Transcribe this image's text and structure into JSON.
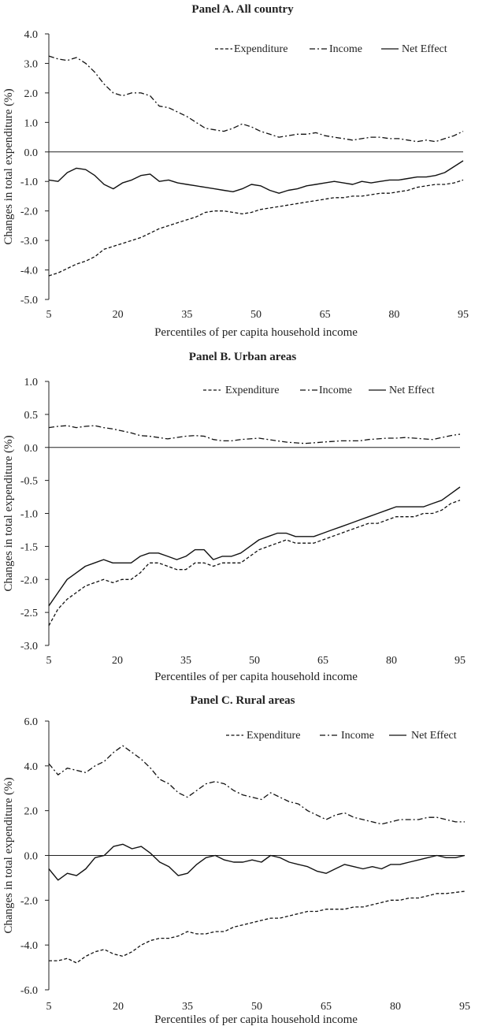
{
  "chart_data": [
    {
      "type": "line",
      "title": "Panel A. All country",
      "xlabel": "Percentiles of per capita household income",
      "ylabel": "Changes in total expenditure (%)",
      "xlim": [
        5,
        95
      ],
      "ylim": [
        -5.0,
        4.0
      ],
      "xticks": [
        5,
        20,
        35,
        50,
        65,
        80,
        95
      ],
      "xtick_labels": [
        "5",
        "20",
        "35",
        "50",
        "65",
        "80",
        "95"
      ],
      "yticks": [
        -5,
        -4,
        -3,
        -2,
        -1,
        0,
        1,
        2,
        3,
        4
      ],
      "ytick_labels": [
        "-5.0",
        "-4.0",
        "-3.0",
        "-2.0",
        "-1.0",
        "0.0",
        "1.0",
        "2.0",
        "3.0",
        "4.0"
      ],
      "legend_position": "top-right",
      "series": [
        {
          "name": "Expenditure",
          "style": "dashed",
          "x": [
            5,
            7,
            9,
            11,
            13,
            15,
            17,
            19,
            21,
            23,
            25,
            27,
            29,
            31,
            33,
            35,
            37,
            39,
            41,
            43,
            45,
            47,
            49,
            51,
            53,
            55,
            57,
            59,
            61,
            63,
            65,
            67,
            69,
            71,
            73,
            75,
            77,
            79,
            81,
            83,
            85,
            87,
            89,
            91,
            93,
            95
          ],
          "values": [
            -4.2,
            -4.1,
            -3.95,
            -3.8,
            -3.7,
            -3.55,
            -3.3,
            -3.2,
            -3.1,
            -3.0,
            -2.9,
            -2.75,
            -2.6,
            -2.5,
            -2.4,
            -2.3,
            -2.2,
            -2.05,
            -2.0,
            -2.0,
            -2.05,
            -2.1,
            -2.05,
            -1.95,
            -1.9,
            -1.85,
            -1.8,
            -1.75,
            -1.7,
            -1.65,
            -1.6,
            -1.55,
            -1.55,
            -1.5,
            -1.5,
            -1.45,
            -1.4,
            -1.4,
            -1.35,
            -1.3,
            -1.2,
            -1.15,
            -1.1,
            -1.1,
            -1.05,
            -0.95
          ]
        },
        {
          "name": "Income",
          "style": "dash-dot",
          "x": [
            5,
            7,
            9,
            11,
            13,
            15,
            17,
            19,
            21,
            23,
            25,
            27,
            29,
            31,
            33,
            35,
            37,
            39,
            41,
            43,
            45,
            47,
            49,
            51,
            53,
            55,
            57,
            59,
            61,
            63,
            65,
            67,
            69,
            71,
            73,
            75,
            77,
            79,
            81,
            83,
            85,
            87,
            89,
            91,
            93,
            95
          ],
          "values": [
            3.25,
            3.15,
            3.1,
            3.2,
            3.0,
            2.7,
            2.3,
            2.0,
            1.9,
            2.0,
            2.0,
            1.9,
            1.55,
            1.5,
            1.35,
            1.2,
            1.0,
            0.8,
            0.75,
            0.7,
            0.8,
            0.95,
            0.85,
            0.7,
            0.6,
            0.5,
            0.55,
            0.6,
            0.6,
            0.65,
            0.55,
            0.5,
            0.45,
            0.4,
            0.45,
            0.5,
            0.5,
            0.45,
            0.45,
            0.4,
            0.35,
            0.4,
            0.35,
            0.45,
            0.55,
            0.7
          ]
        },
        {
          "name": "Net Effect",
          "style": "solid",
          "x": [
            5,
            7,
            9,
            11,
            13,
            15,
            17,
            19,
            21,
            23,
            25,
            27,
            29,
            31,
            33,
            35,
            37,
            39,
            41,
            43,
            45,
            47,
            49,
            51,
            53,
            55,
            57,
            59,
            61,
            63,
            65,
            67,
            69,
            71,
            73,
            75,
            77,
            79,
            81,
            83,
            85,
            87,
            89,
            91,
            93,
            95
          ],
          "values": [
            -0.95,
            -1.0,
            -0.7,
            -0.55,
            -0.6,
            -0.8,
            -1.1,
            -1.25,
            -1.05,
            -0.95,
            -0.8,
            -0.75,
            -1.0,
            -0.95,
            -1.05,
            -1.1,
            -1.15,
            -1.2,
            -1.25,
            -1.3,
            -1.35,
            -1.25,
            -1.1,
            -1.15,
            -1.3,
            -1.4,
            -1.3,
            -1.25,
            -1.15,
            -1.1,
            -1.05,
            -1.0,
            -1.05,
            -1.1,
            -1.0,
            -1.05,
            -1.0,
            -0.95,
            -0.95,
            -0.9,
            -0.85,
            -0.85,
            -0.8,
            -0.7,
            -0.5,
            -0.3
          ]
        }
      ]
    },
    {
      "type": "line",
      "title": "Panel B. Urban areas",
      "xlabel": "Percentiles of per capita household income",
      "ylabel": "Changes in total expenditure (%)",
      "xlim": [
        5,
        95
      ],
      "ylim": [
        -3.0,
        1.0
      ],
      "xticks": [
        5,
        20,
        35,
        50,
        65,
        80,
        95
      ],
      "xtick_labels": [
        "5",
        "20",
        "35",
        "50",
        "65",
        "80",
        "95"
      ],
      "yticks": [
        -3,
        -2.5,
        -2,
        -1.5,
        -1,
        -0.5,
        0,
        0.5,
        1
      ],
      "ytick_labels": [
        "-3.0",
        "-2.5",
        "-2.0",
        "-1.5",
        "-1.0",
        "-0.5",
        "0.0",
        "0.5",
        "1.0"
      ],
      "legend_position": "top-right",
      "series": [
        {
          "name": "Expenditure",
          "style": "dashed",
          "x": [
            5,
            7,
            9,
            11,
            13,
            15,
            17,
            19,
            21,
            23,
            25,
            27,
            29,
            31,
            33,
            35,
            37,
            39,
            41,
            43,
            45,
            47,
            49,
            51,
            53,
            55,
            57,
            59,
            61,
            63,
            65,
            67,
            69,
            71,
            73,
            75,
            77,
            79,
            81,
            83,
            85,
            87,
            89,
            91,
            93,
            95
          ],
          "values": [
            -2.7,
            -2.45,
            -2.3,
            -2.2,
            -2.1,
            -2.05,
            -2.0,
            -2.05,
            -2.0,
            -2.0,
            -1.9,
            -1.75,
            -1.75,
            -1.8,
            -1.85,
            -1.85,
            -1.75,
            -1.75,
            -1.8,
            -1.75,
            -1.75,
            -1.75,
            -1.65,
            -1.55,
            -1.5,
            -1.45,
            -1.4,
            -1.45,
            -1.45,
            -1.45,
            -1.4,
            -1.35,
            -1.3,
            -1.25,
            -1.2,
            -1.15,
            -1.15,
            -1.1,
            -1.05,
            -1.05,
            -1.05,
            -1.0,
            -1.0,
            -0.95,
            -0.85,
            -0.8
          ]
        },
        {
          "name": "Income",
          "style": "dash-dot",
          "x": [
            5,
            7,
            9,
            11,
            13,
            15,
            17,
            19,
            21,
            23,
            25,
            27,
            29,
            31,
            33,
            35,
            37,
            39,
            41,
            43,
            45,
            47,
            49,
            51,
            53,
            55,
            57,
            59,
            61,
            63,
            65,
            67,
            69,
            71,
            73,
            75,
            77,
            79,
            81,
            83,
            85,
            87,
            89,
            91,
            93,
            95
          ],
          "values": [
            0.3,
            0.32,
            0.33,
            0.3,
            0.32,
            0.33,
            0.3,
            0.28,
            0.25,
            0.22,
            0.18,
            0.17,
            0.15,
            0.13,
            0.15,
            0.17,
            0.18,
            0.17,
            0.12,
            0.1,
            0.1,
            0.12,
            0.13,
            0.14,
            0.12,
            0.1,
            0.08,
            0.07,
            0.06,
            0.07,
            0.08,
            0.09,
            0.1,
            0.1,
            0.1,
            0.12,
            0.13,
            0.14,
            0.14,
            0.15,
            0.14,
            0.13,
            0.12,
            0.15,
            0.18,
            0.2
          ]
        },
        {
          "name": "Net Effect",
          "style": "solid",
          "x": [
            5,
            7,
            9,
            11,
            13,
            15,
            17,
            19,
            21,
            23,
            25,
            27,
            29,
            31,
            33,
            35,
            37,
            39,
            41,
            43,
            45,
            47,
            49,
            51,
            53,
            55,
            57,
            59,
            61,
            63,
            65,
            67,
            69,
            71,
            73,
            75,
            77,
            79,
            81,
            83,
            85,
            87,
            89,
            91,
            93,
            95
          ],
          "values": [
            -2.4,
            -2.2,
            -2.0,
            -1.9,
            -1.8,
            -1.75,
            -1.7,
            -1.75,
            -1.75,
            -1.75,
            -1.65,
            -1.6,
            -1.6,
            -1.65,
            -1.7,
            -1.65,
            -1.55,
            -1.55,
            -1.7,
            -1.65,
            -1.65,
            -1.6,
            -1.5,
            -1.4,
            -1.35,
            -1.3,
            -1.3,
            -1.35,
            -1.35,
            -1.35,
            -1.3,
            -1.25,
            -1.2,
            -1.15,
            -1.1,
            -1.05,
            -1.0,
            -0.95,
            -0.9,
            -0.9,
            -0.9,
            -0.9,
            -0.85,
            -0.8,
            -0.7,
            -0.6
          ]
        }
      ]
    },
    {
      "type": "line",
      "title": "Panel C. Rural areas",
      "xlabel": "Percentiles of per capita household income",
      "ylabel": "Changes in total expenditure (%)",
      "xlim": [
        5,
        95
      ],
      "ylim": [
        -6.0,
        6.0
      ],
      "xticks": [
        5,
        20,
        35,
        50,
        65,
        80,
        95
      ],
      "xtick_labels": [
        "5",
        "20",
        "35",
        "50",
        "65",
        "80",
        "95"
      ],
      "yticks": [
        -6,
        -4,
        -2,
        0,
        2,
        4,
        6
      ],
      "ytick_labels": [
        "-6.0",
        "-4.0",
        "-2.0",
        "0.0",
        "2.0",
        "4.0",
        "6.0"
      ],
      "legend_position": "top-right",
      "series": [
        {
          "name": "Expenditure",
          "style": "dashed",
          "x": [
            5,
            7,
            9,
            11,
            13,
            15,
            17,
            19,
            21,
            23,
            25,
            27,
            29,
            31,
            33,
            35,
            37,
            39,
            41,
            43,
            45,
            47,
            49,
            51,
            53,
            55,
            57,
            59,
            61,
            63,
            65,
            67,
            69,
            71,
            73,
            75,
            77,
            79,
            81,
            83,
            85,
            87,
            89,
            91,
            93,
            95
          ],
          "values": [
            -4.7,
            -4.7,
            -4.6,
            -4.8,
            -4.5,
            -4.3,
            -4.2,
            -4.4,
            -4.5,
            -4.3,
            -4.0,
            -3.8,
            -3.7,
            -3.7,
            -3.6,
            -3.4,
            -3.5,
            -3.5,
            -3.4,
            -3.4,
            -3.2,
            -3.1,
            -3.0,
            -2.9,
            -2.8,
            -2.8,
            -2.7,
            -2.6,
            -2.5,
            -2.5,
            -2.4,
            -2.4,
            -2.4,
            -2.3,
            -2.3,
            -2.2,
            -2.1,
            -2.0,
            -2.0,
            -1.9,
            -1.9,
            -1.8,
            -1.7,
            -1.7,
            -1.65,
            -1.6
          ]
        },
        {
          "name": "Income",
          "style": "dash-dot",
          "x": [
            5,
            7,
            9,
            11,
            13,
            15,
            17,
            19,
            21,
            23,
            25,
            27,
            29,
            31,
            33,
            35,
            37,
            39,
            41,
            43,
            45,
            47,
            49,
            51,
            53,
            55,
            57,
            59,
            61,
            63,
            65,
            67,
            69,
            71,
            73,
            75,
            77,
            79,
            81,
            83,
            85,
            87,
            89,
            91,
            93,
            95
          ],
          "values": [
            4.1,
            3.6,
            3.9,
            3.8,
            3.7,
            4.0,
            4.2,
            4.6,
            4.9,
            4.6,
            4.3,
            3.9,
            3.4,
            3.2,
            2.8,
            2.6,
            2.9,
            3.2,
            3.3,
            3.2,
            2.9,
            2.7,
            2.6,
            2.5,
            2.8,
            2.6,
            2.4,
            2.3,
            2.0,
            1.8,
            1.6,
            1.8,
            1.9,
            1.7,
            1.6,
            1.5,
            1.4,
            1.5,
            1.6,
            1.6,
            1.6,
            1.7,
            1.7,
            1.6,
            1.5,
            1.5
          ]
        },
        {
          "name": "Net Effect",
          "style": "solid",
          "x": [
            5,
            7,
            9,
            11,
            13,
            15,
            17,
            19,
            21,
            23,
            25,
            27,
            29,
            31,
            33,
            35,
            37,
            39,
            41,
            43,
            45,
            47,
            49,
            51,
            53,
            55,
            57,
            59,
            61,
            63,
            65,
            67,
            69,
            71,
            73,
            75,
            77,
            79,
            81,
            83,
            85,
            87,
            89,
            91,
            93,
            95
          ],
          "values": [
            -0.6,
            -1.1,
            -0.8,
            -0.9,
            -0.6,
            -0.1,
            0.0,
            0.4,
            0.5,
            0.3,
            0.4,
            0.1,
            -0.3,
            -0.5,
            -0.9,
            -0.8,
            -0.4,
            -0.1,
            0.0,
            -0.2,
            -0.3,
            -0.3,
            -0.2,
            -0.3,
            0.0,
            -0.1,
            -0.3,
            -0.4,
            -0.5,
            -0.7,
            -0.8,
            -0.6,
            -0.4,
            -0.5,
            -0.6,
            -0.5,
            -0.6,
            -0.4,
            -0.4,
            -0.3,
            -0.2,
            -0.1,
            0.0,
            -0.1,
            -0.1,
            0.0
          ]
        }
      ]
    }
  ]
}
